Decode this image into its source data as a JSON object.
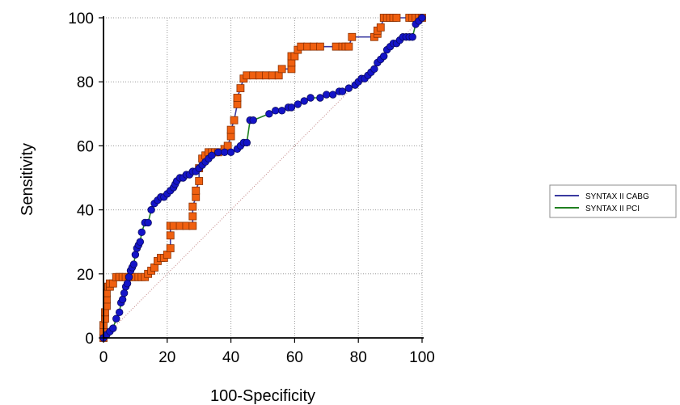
{
  "chart_data": {
    "type": "line",
    "title": "",
    "xlabel": "100-Specificity",
    "ylabel": "Sensitivity",
    "xlim": [
      0,
      100
    ],
    "ylim": [
      0,
      100
    ],
    "xticks": [
      "0",
      "20",
      "40",
      "60",
      "80",
      "100"
    ],
    "yticks": [
      "0",
      "20",
      "40",
      "60",
      "80",
      "100"
    ],
    "grid": true,
    "legend_position": "right",
    "reference_line": {
      "from": [
        0,
        0
      ],
      "to": [
        100,
        100
      ],
      "color": "#c08080"
    },
    "series": [
      {
        "name": "SYNTAX II CABG",
        "line_color": "#3a3aa0",
        "marker": "square",
        "marker_color": "#f06010",
        "x": [
          0,
          0,
          0,
          0.5,
          0.5,
          1,
          1,
          1,
          1.5,
          2,
          2,
          3,
          4,
          5,
          5,
          6,
          7,
          8,
          9,
          10,
          11,
          12,
          13,
          14,
          15,
          16,
          17,
          18,
          19,
          20,
          21,
          21,
          21,
          22,
          24,
          26,
          28,
          28,
          28,
          29,
          29,
          30,
          30,
          31,
          32,
          33,
          34,
          35,
          36,
          38,
          39,
          40,
          40,
          41,
          42,
          42,
          43,
          44,
          45,
          47,
          49,
          51,
          53,
          55,
          56,
          59,
          59,
          59,
          60,
          61,
          62,
          64,
          66,
          68,
          73,
          75,
          76,
          77,
          78,
          85,
          86,
          86,
          87,
          88,
          89,
          90,
          91,
          92,
          96,
          97,
          98,
          99,
          100
        ],
        "y": [
          0,
          2,
          4,
          6,
          8,
          10,
          12,
          14,
          16,
          16,
          17,
          17,
          19,
          19,
          19,
          19,
          19,
          19,
          19,
          19,
          19,
          19,
          19,
          20,
          21,
          22,
          24,
          25,
          25,
          26,
          28,
          32,
          35,
          35,
          35,
          35,
          35,
          38,
          41,
          44,
          46,
          49,
          53,
          56,
          57,
          58,
          58,
          58,
          58,
          59,
          60,
          63,
          65,
          68,
          73,
          75,
          78,
          81,
          82,
          82,
          82,
          82,
          82,
          82,
          84,
          84,
          86,
          88,
          88,
          90,
          91,
          91,
          91,
          91,
          91,
          91,
          91,
          91,
          94,
          94,
          95,
          96,
          97,
          100,
          100,
          100,
          100,
          100,
          100,
          100,
          100,
          100,
          100
        ]
      },
      {
        "name": "SYNTAX II PCI",
        "line_color": "#208020",
        "marker": "circle",
        "marker_color": "#1414c8",
        "x": [
          0,
          1,
          2,
          3,
          4,
          5,
          5.5,
          6,
          6.5,
          7,
          7.5,
          8,
          8.5,
          9,
          9.5,
          10,
          10.5,
          11,
          11.5,
          12,
          13,
          14,
          15,
          16,
          17,
          18,
          19,
          20,
          21,
          22,
          22.5,
          23,
          24,
          25,
          26,
          27,
          28,
          29,
          30,
          31,
          32,
          33,
          34,
          36,
          38,
          40,
          42,
          43,
          44,
          45,
          46,
          47,
          52,
          54,
          56,
          58,
          59,
          61,
          63,
          65,
          68,
          70,
          72,
          74,
          75,
          77,
          79,
          80,
          81,
          82,
          83,
          84,
          85,
          86,
          87,
          88,
          89,
          90,
          91,
          92,
          93,
          94,
          95,
          96,
          97,
          98,
          99,
          100
        ],
        "y": [
          0,
          1,
          2,
          3,
          6,
          8,
          11,
          12,
          14,
          16,
          17,
          19,
          21,
          22,
          23,
          26,
          28,
          29,
          30,
          33,
          36,
          36,
          40,
          42,
          43,
          44,
          44,
          45,
          46,
          47,
          48,
          49,
          50,
          50,
          51,
          51,
          52,
          52,
          53,
          54,
          55,
          56,
          57,
          58,
          58,
          58,
          59,
          60,
          61,
          61,
          68,
          68,
          70,
          71,
          71,
          72,
          72,
          73,
          74,
          75,
          75,
          76,
          76,
          77,
          77,
          78,
          79,
          80,
          81,
          81,
          82,
          83,
          84,
          86,
          87,
          88,
          90,
          91,
          92,
          92,
          93,
          94,
          94,
          94,
          94,
          98,
          99,
          100
        ]
      }
    ]
  }
}
